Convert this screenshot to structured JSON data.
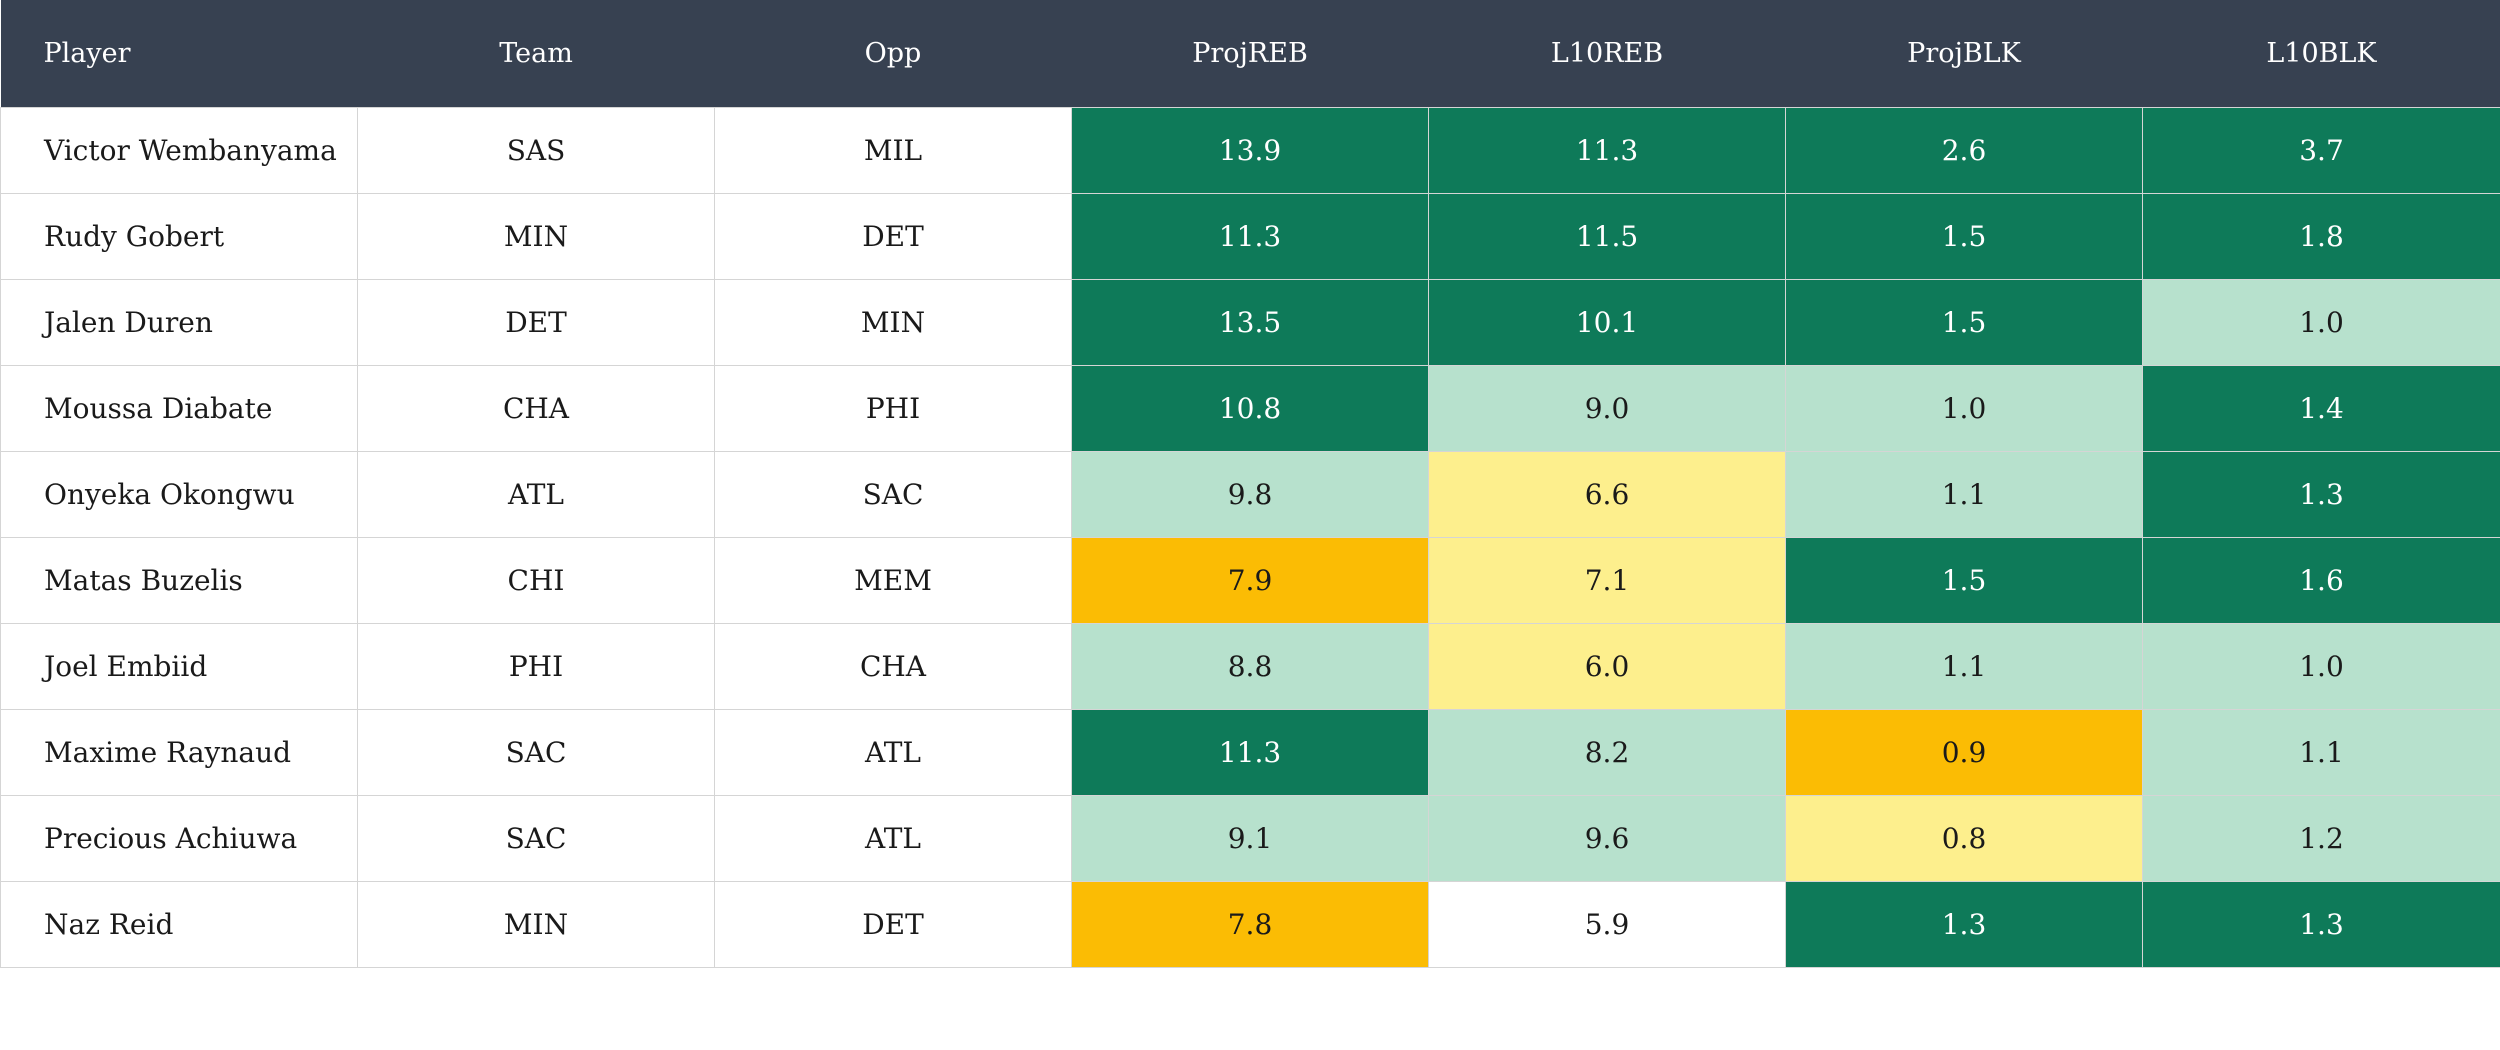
{
  "table": {
    "headers": [
      "Player",
      "Team",
      "Opp",
      "ProjREB",
      "L10REB",
      "ProjBLK",
      "L10BLK"
    ],
    "rows": [
      {
        "player": "Victor Wembanyama",
        "team": "SAS",
        "opp": "MIL",
        "stats": [
          {
            "value": "13.9",
            "tier": "dark"
          },
          {
            "value": "11.3",
            "tier": "dark"
          },
          {
            "value": "2.6",
            "tier": "dark"
          },
          {
            "value": "3.7",
            "tier": "dark"
          }
        ]
      },
      {
        "player": "Rudy Gobert",
        "team": "MIN",
        "opp": "DET",
        "stats": [
          {
            "value": "11.3",
            "tier": "dark"
          },
          {
            "value": "11.5",
            "tier": "dark"
          },
          {
            "value": "1.5",
            "tier": "dark"
          },
          {
            "value": "1.8",
            "tier": "dark"
          }
        ]
      },
      {
        "player": "Jalen Duren",
        "team": "DET",
        "opp": "MIN",
        "stats": [
          {
            "value": "13.5",
            "tier": "dark"
          },
          {
            "value": "10.1",
            "tier": "dark"
          },
          {
            "value": "1.5",
            "tier": "dark"
          },
          {
            "value": "1.0",
            "tier": "light"
          }
        ]
      },
      {
        "player": "Moussa Diabate",
        "team": "CHA",
        "opp": "PHI",
        "stats": [
          {
            "value": "10.8",
            "tier": "dark"
          },
          {
            "value": "9.0",
            "tier": "light"
          },
          {
            "value": "1.0",
            "tier": "light"
          },
          {
            "value": "1.4",
            "tier": "dark"
          }
        ]
      },
      {
        "player": "Onyeka Okongwu",
        "team": "ATL",
        "opp": "SAC",
        "stats": [
          {
            "value": "9.8",
            "tier": "light"
          },
          {
            "value": "6.6",
            "tier": "yellow"
          },
          {
            "value": "1.1",
            "tier": "light"
          },
          {
            "value": "1.3",
            "tier": "dark"
          }
        ]
      },
      {
        "player": "Matas Buzelis",
        "team": "CHI",
        "opp": "MEM",
        "stats": [
          {
            "value": "7.9",
            "tier": "orange"
          },
          {
            "value": "7.1",
            "tier": "yellow"
          },
          {
            "value": "1.5",
            "tier": "dark"
          },
          {
            "value": "1.6",
            "tier": "dark"
          }
        ]
      },
      {
        "player": "Joel Embiid",
        "team": "PHI",
        "opp": "CHA",
        "stats": [
          {
            "value": "8.8",
            "tier": "light"
          },
          {
            "value": "6.0",
            "tier": "yellow"
          },
          {
            "value": "1.1",
            "tier": "light"
          },
          {
            "value": "1.0",
            "tier": "light"
          }
        ]
      },
      {
        "player": "Maxime Raynaud",
        "team": "SAC",
        "opp": "ATL",
        "stats": [
          {
            "value": "11.3",
            "tier": "dark"
          },
          {
            "value": "8.2",
            "tier": "light"
          },
          {
            "value": "0.9",
            "tier": "orange"
          },
          {
            "value": "1.1",
            "tier": "light"
          }
        ]
      },
      {
        "player": "Precious Achiuwa",
        "team": "SAC",
        "opp": "ATL",
        "stats": [
          {
            "value": "9.1",
            "tier": "light"
          },
          {
            "value": "9.6",
            "tier": "light"
          },
          {
            "value": "0.8",
            "tier": "yellow"
          },
          {
            "value": "1.2",
            "tier": "light"
          }
        ]
      },
      {
        "player": "Naz Reid",
        "team": "MIN",
        "opp": "DET",
        "stats": [
          {
            "value": "7.8",
            "tier": "orange"
          },
          {
            "value": "5.9",
            "tier": "none"
          },
          {
            "value": "1.3",
            "tier": "dark"
          },
          {
            "value": "1.3",
            "tier": "dark"
          }
        ]
      }
    ]
  },
  "colors": {
    "header_bg": "#374151",
    "dark": "#0e7a59",
    "light": "#b7e1cd",
    "yellow": "#fdef8d",
    "orange": "#fbbc04",
    "none": "#ffffff"
  }
}
